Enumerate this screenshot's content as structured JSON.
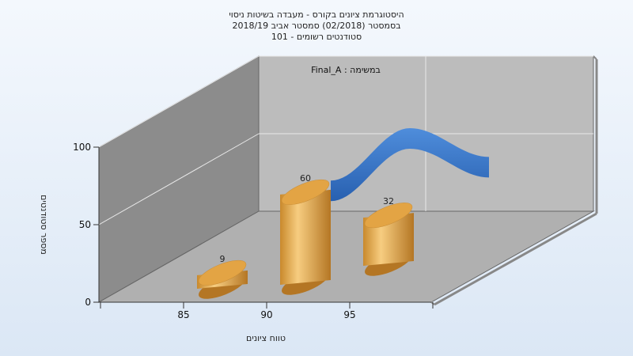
{
  "chart_data": {
    "type": "bar",
    "title_lines": [
      "היסטוגרמת ציונים בקורס - מעבדה בשיטות ניסוי",
      "בסמסטר  (02/2018)  סמסטר אביב 2018/19",
      "סטודנטים רשומים - 101"
    ],
    "series_label": "במשימה : Final_A",
    "xlabel": "טווח ציונים",
    "ylabel": "מספר סטודנטים",
    "categories": [
      "85",
      "90",
      "95"
    ],
    "values": [
      9,
      60,
      32
    ],
    "ylim": [
      0,
      100
    ],
    "yticks": [
      0,
      50,
      100
    ],
    "grid": true,
    "colors": {
      "bar_light": "#f6c777",
      "bar_mid": "#e2a544",
      "bar_dark": "#b87a22",
      "ribbon": "#2f6dbf",
      "ribbon_light": "#4a86d6",
      "back_wall": "#b9b9b9",
      "left_wall": "#8d8d8d",
      "floor": "#b3b3b3"
    }
  }
}
